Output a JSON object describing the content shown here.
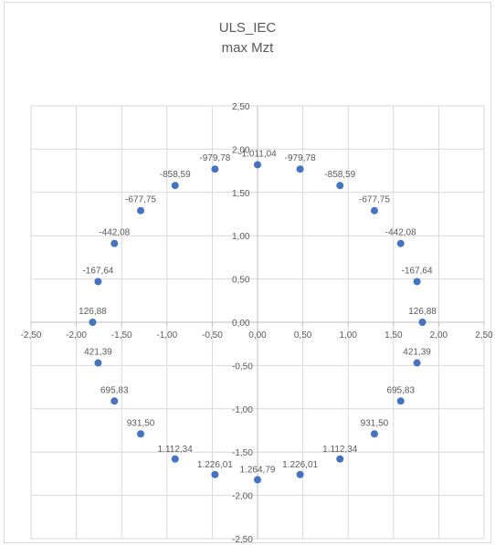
{
  "chart_data": {
    "type": "scatter",
    "title": "ULS_IEC",
    "subtitle": "max Mzt",
    "xlim": [
      -2.5,
      2.5
    ],
    "ylim": [
      -2.5,
      2.5
    ],
    "x_ticks": [
      "-2,50",
      "-2,00",
      "-1,50",
      "-1,00",
      "-0,50",
      "0,00",
      "0,50",
      "1,00",
      "1,50",
      "2,00",
      "2,50"
    ],
    "y_ticks": [
      "2,50",
      "2,00",
      "1,50",
      "1,00",
      "0,50",
      "0,00",
      "-0,50",
      "-1,00",
      "-1,50",
      "-2,00",
      "-2,50"
    ],
    "grid": true,
    "marker_color": "#4472c4",
    "points": [
      {
        "x": 0.0,
        "y": 1.82,
        "label": "-1.011,04"
      },
      {
        "x": 0.47,
        "y": 1.77,
        "label": "-979,78"
      },
      {
        "x": 0.91,
        "y": 1.58,
        "label": "-858,59"
      },
      {
        "x": 1.29,
        "y": 1.29,
        "label": "-677,75"
      },
      {
        "x": 1.58,
        "y": 0.91,
        "label": "-442,08"
      },
      {
        "x": 1.76,
        "y": 0.47,
        "label": "-167,64"
      },
      {
        "x": 1.82,
        "y": 0.0,
        "label": "126,88"
      },
      {
        "x": 1.76,
        "y": -0.47,
        "label": "421,39"
      },
      {
        "x": 1.58,
        "y": -0.91,
        "label": "695,83"
      },
      {
        "x": 1.29,
        "y": -1.29,
        "label": "931,50"
      },
      {
        "x": 0.91,
        "y": -1.58,
        "label": "1.112,34"
      },
      {
        "x": 0.47,
        "y": -1.76,
        "label": "1.226,01"
      },
      {
        "x": 0.0,
        "y": -1.82,
        "label": "1.264,79"
      },
      {
        "x": -0.47,
        "y": -1.76,
        "label": "1.226,01"
      },
      {
        "x": -0.91,
        "y": -1.58,
        "label": "1.112,34"
      },
      {
        "x": -1.29,
        "y": -1.29,
        "label": "931,50"
      },
      {
        "x": -1.58,
        "y": -0.91,
        "label": "695,83"
      },
      {
        "x": -1.76,
        "y": -0.47,
        "label": "421,39"
      },
      {
        "x": -1.82,
        "y": 0.0,
        "label": "126,88"
      },
      {
        "x": -1.76,
        "y": 0.47,
        "label": "-167,64"
      },
      {
        "x": -1.58,
        "y": 0.91,
        "label": "-442,08"
      },
      {
        "x": -1.29,
        "y": 1.29,
        "label": "-677,75"
      },
      {
        "x": -0.91,
        "y": 1.58,
        "label": "-858,59"
      },
      {
        "x": -0.47,
        "y": 1.77,
        "label": "-979,78"
      }
    ]
  }
}
